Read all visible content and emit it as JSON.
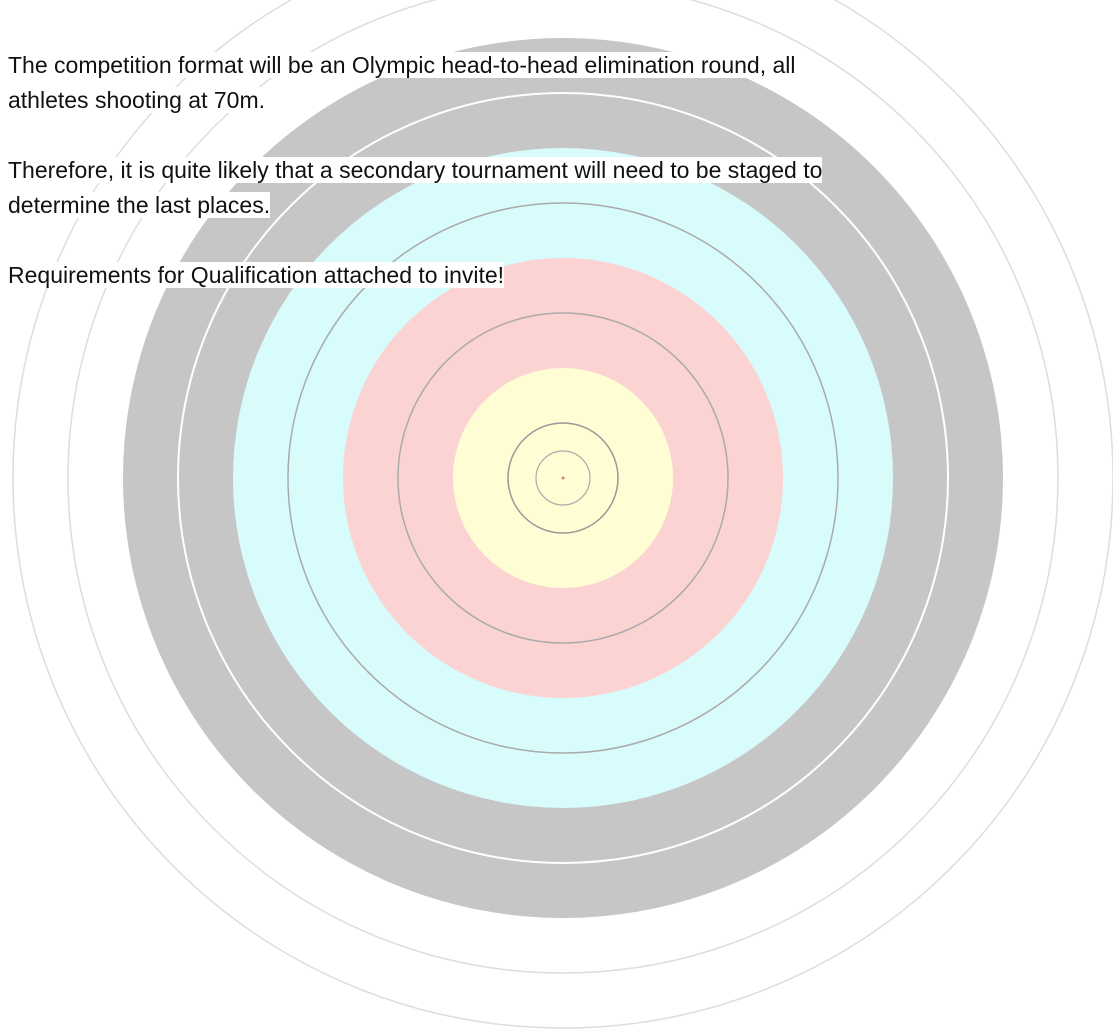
{
  "paragraphs": [
    {
      "lines": [
        "The competition format will be an Olympic head-to-head elimination round, all",
        "athletes shooting at 70m."
      ]
    },
    {
      "lines": [
        "Therefore, it is quite likely that a secondary tournament will need to be staged to",
        "determine the last places."
      ]
    },
    {
      "lines": [
        "Requirements for Qualification attached to invite!"
      ]
    }
  ]
}
